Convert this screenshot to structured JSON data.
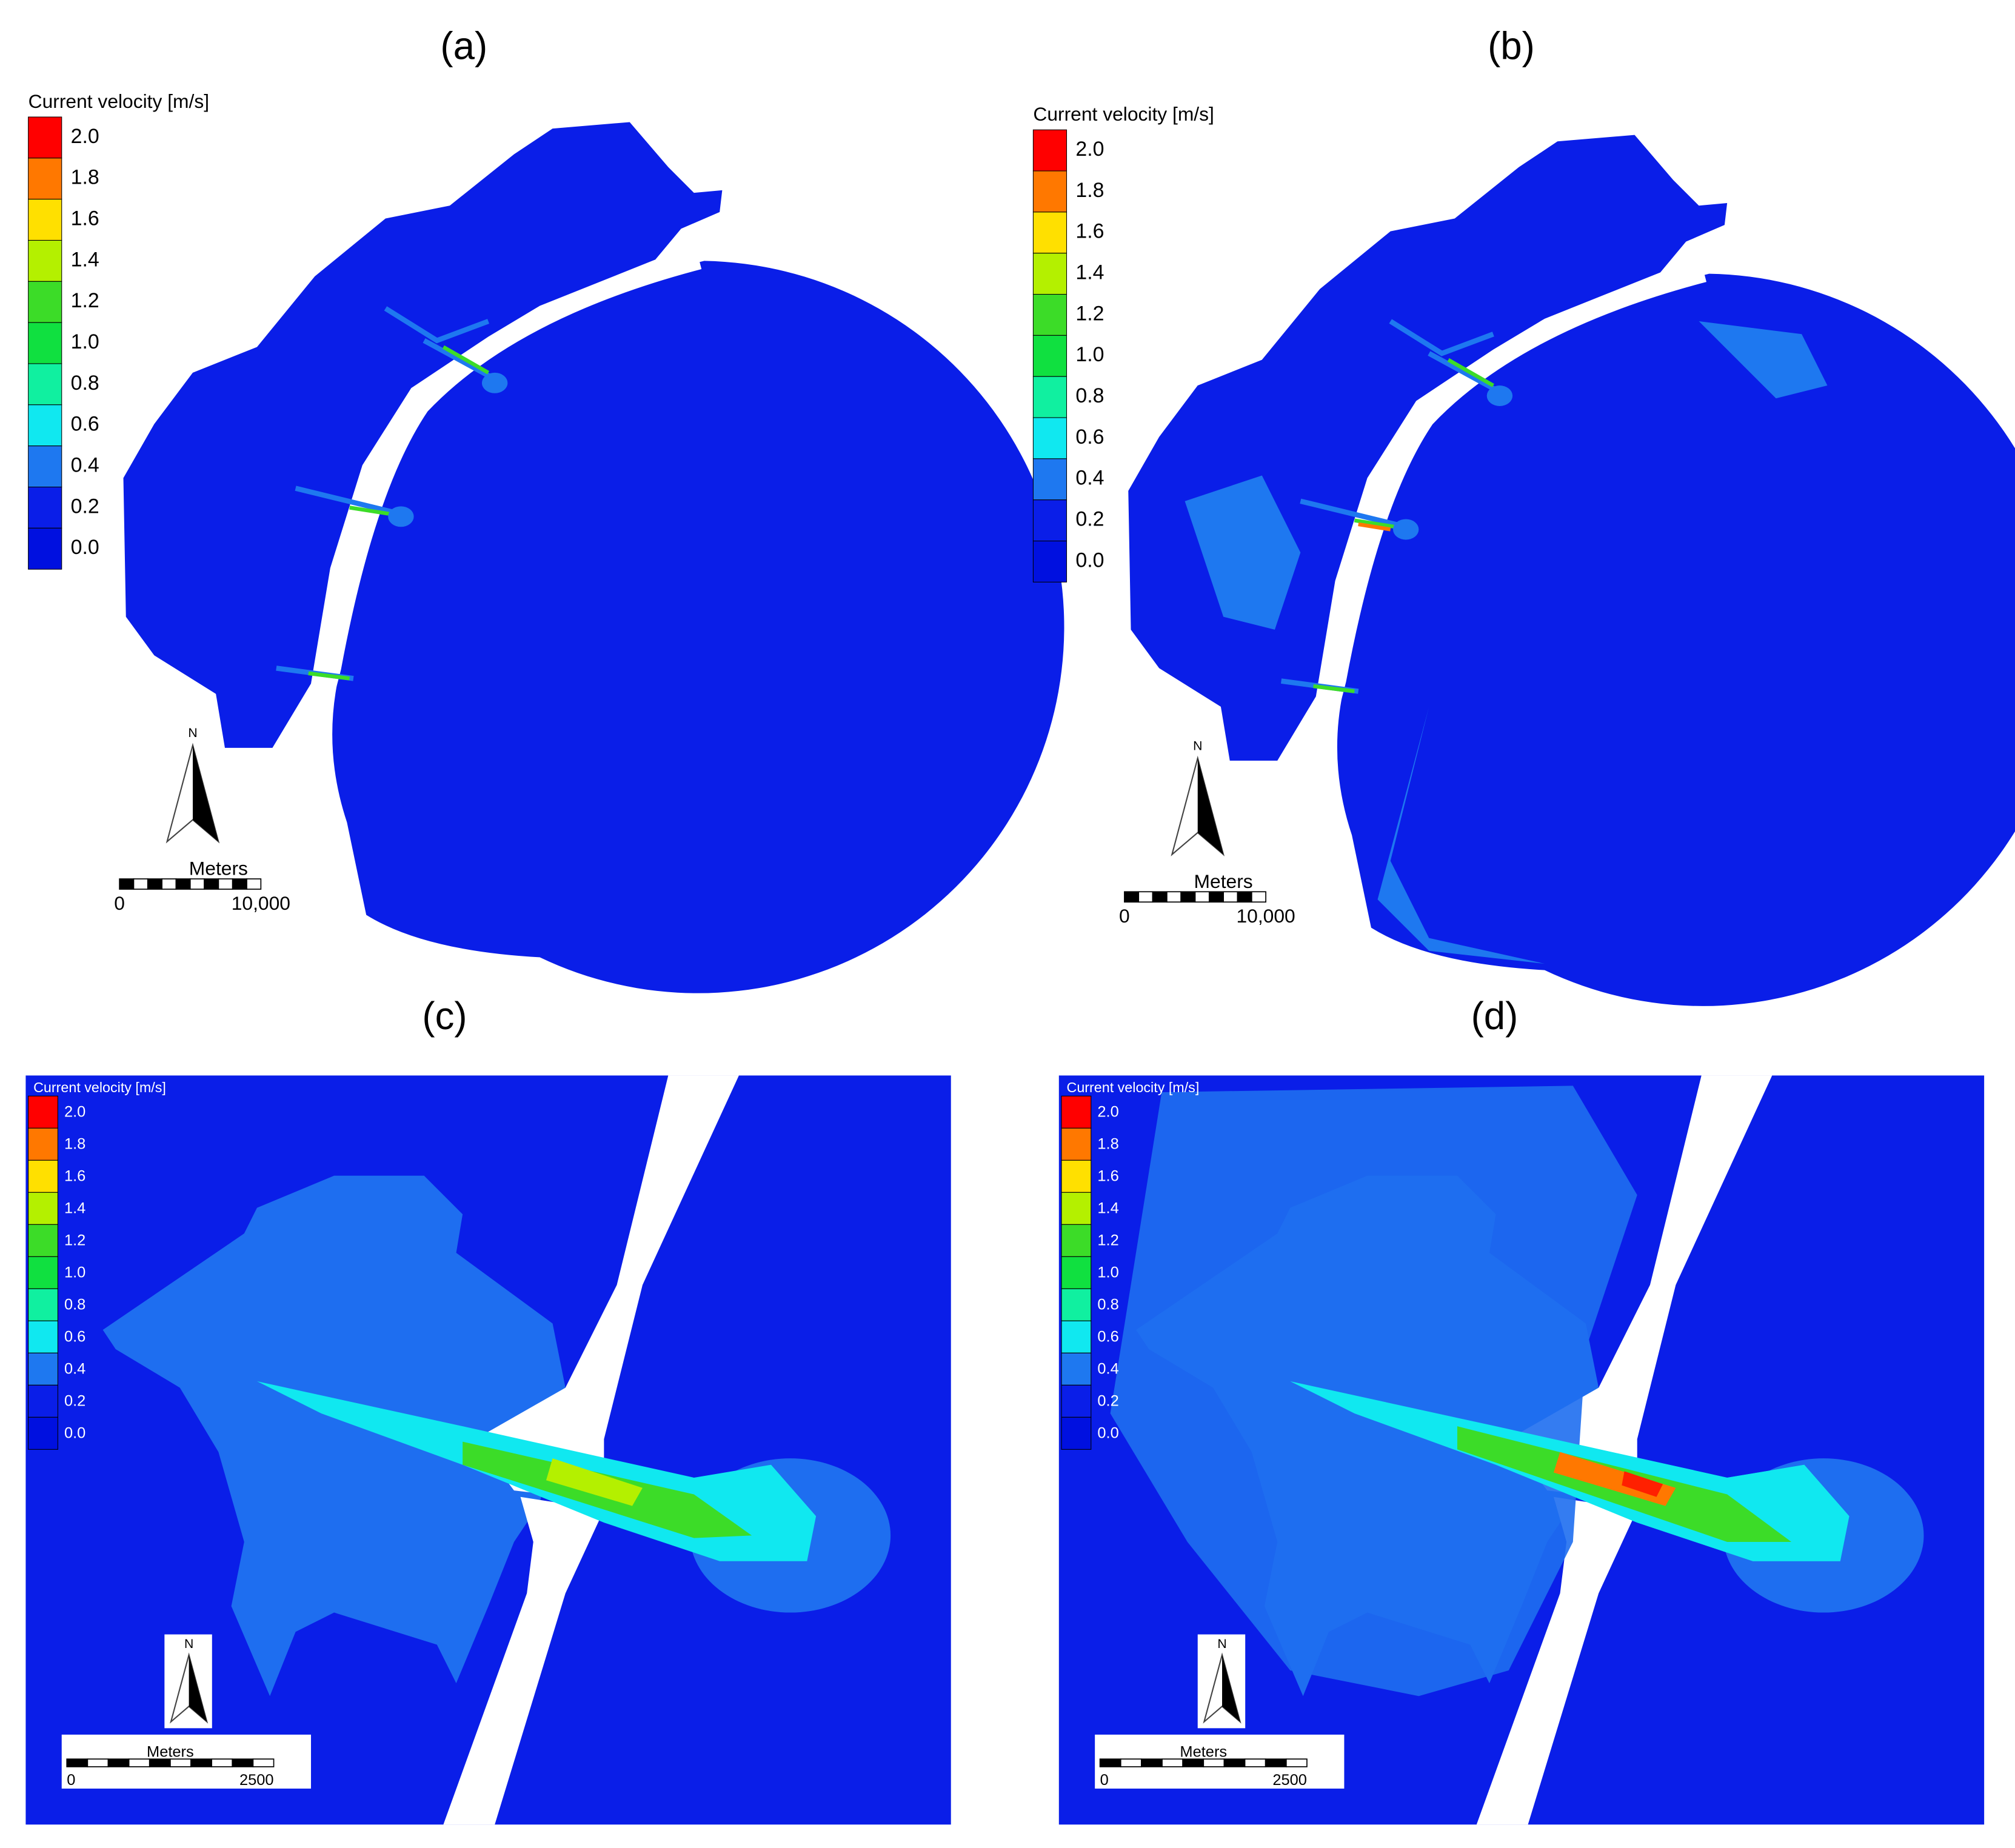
{
  "panels": [
    {
      "label": "(a)",
      "legend": {
        "title": "Current velocity [m/s]",
        "labels": [
          "2.0",
          "1.8",
          "1.6",
          "1.4",
          "1.2",
          "1.0",
          "0.8",
          "0.6",
          "0.4",
          "0.2",
          "0.0"
        ],
        "colors": [
          "#ff0000",
          "#ff7800",
          "#ffe000",
          "#b4f000",
          "#3cdc28",
          "#10e040",
          "#10f0a0",
          "#10e8f0",
          "#1e78f0",
          "#0a1ee8",
          "#0010e0"
        ]
      },
      "scale_bar": {
        "unit": "Meters",
        "labels": [
          "0",
          "10,000"
        ]
      },
      "north": "N"
    },
    {
      "label": "(b)",
      "legend": {
        "title": "Current velocity [m/s]",
        "labels": [
          "2.0",
          "1.8",
          "1.6",
          "1.4",
          "1.2",
          "1.0",
          "0.8",
          "0.6",
          "0.4",
          "0.2",
          "0.0"
        ],
        "colors": [
          "#ff0000",
          "#ff7800",
          "#ffe000",
          "#b4f000",
          "#3cdc28",
          "#10e040",
          "#10f0a0",
          "#10e8f0",
          "#1e78f0",
          "#0a1ee8",
          "#0010e0"
        ]
      },
      "scale_bar": {
        "unit": "Meters",
        "labels": [
          "0",
          "10,000"
        ]
      },
      "north": "N"
    },
    {
      "label": "(c)",
      "legend": {
        "title": "Current velocity [m/s]",
        "labels": [
          "2.0",
          "1.8",
          "1.6",
          "1.4",
          "1.2",
          "1.0",
          "0.8",
          "0.6",
          "0.4",
          "0.2",
          "0.0"
        ],
        "colors": [
          "#ff0000",
          "#ff7800",
          "#ffe000",
          "#b4f000",
          "#3cdc28",
          "#10e040",
          "#10f0a0",
          "#10e8f0",
          "#1e78f0",
          "#0a1ee8",
          "#0010e0"
        ]
      },
      "scale_bar": {
        "unit": "Meters",
        "labels": [
          "0",
          "2500"
        ]
      },
      "north": "N"
    },
    {
      "label": "(d)",
      "legend": {
        "title": "Current velocity [m/s]",
        "labels": [
          "2.0",
          "1.8",
          "1.6",
          "1.4",
          "1.2",
          "1.0",
          "0.8",
          "0.6",
          "0.4",
          "0.2",
          "0.0"
        ],
        "colors": [
          "#ff0000",
          "#ff7800",
          "#ffe000",
          "#b4f000",
          "#3cdc28",
          "#10e040",
          "#10f0a0",
          "#10e8f0",
          "#1e78f0",
          "#0a1ee8",
          "#0010e0"
        ]
      },
      "scale_bar": {
        "unit": "Meters",
        "labels": [
          "0",
          "2500"
        ]
      },
      "north": "N"
    }
  ]
}
